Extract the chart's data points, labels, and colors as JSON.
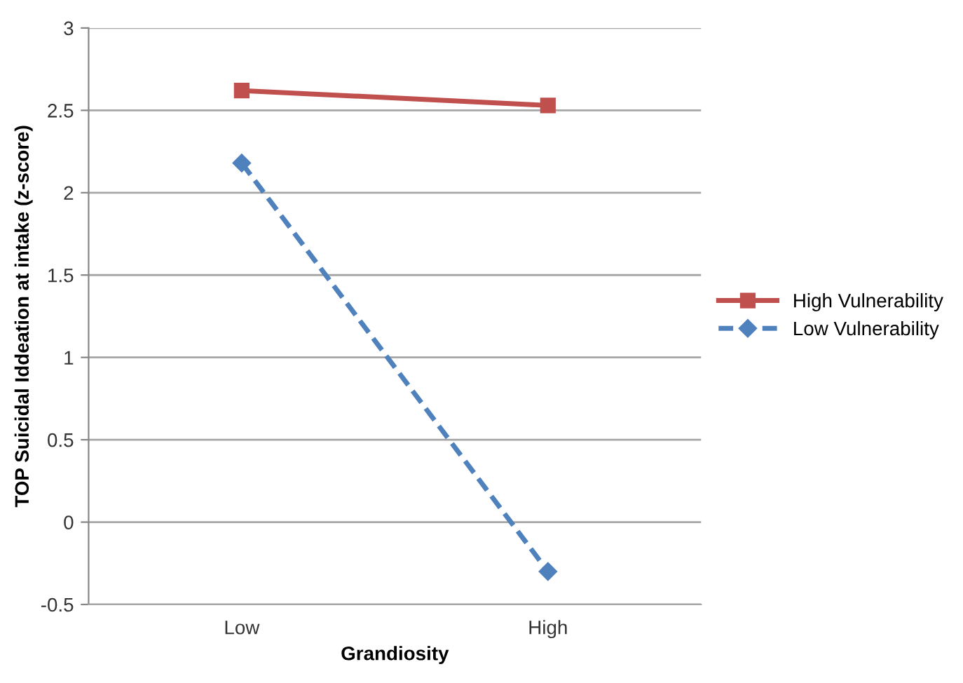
{
  "chart_data": {
    "type": "line",
    "xlabel": "Grandiosity",
    "ylabel": "TOP Suicidal Iddeation at intake (z-score)",
    "categories": [
      "Low",
      "High"
    ],
    "series": [
      {
        "name": "High Vulnerability",
        "color": "#c0504d",
        "values": [
          2.62,
          2.53
        ],
        "marker": "square",
        "line_style": "solid"
      },
      {
        "name": "Low Vulnerability",
        "color": "#4f81bd",
        "values": [
          2.18,
          -0.3
        ],
        "marker": "diamond",
        "line_style": "dashed"
      }
    ],
    "ylim": [
      -0.5,
      3
    ],
    "yticks": [
      -0.5,
      0,
      0.5,
      1,
      1.5,
      2,
      2.5,
      3
    ],
    "grid": "y",
    "legend": "right"
  }
}
